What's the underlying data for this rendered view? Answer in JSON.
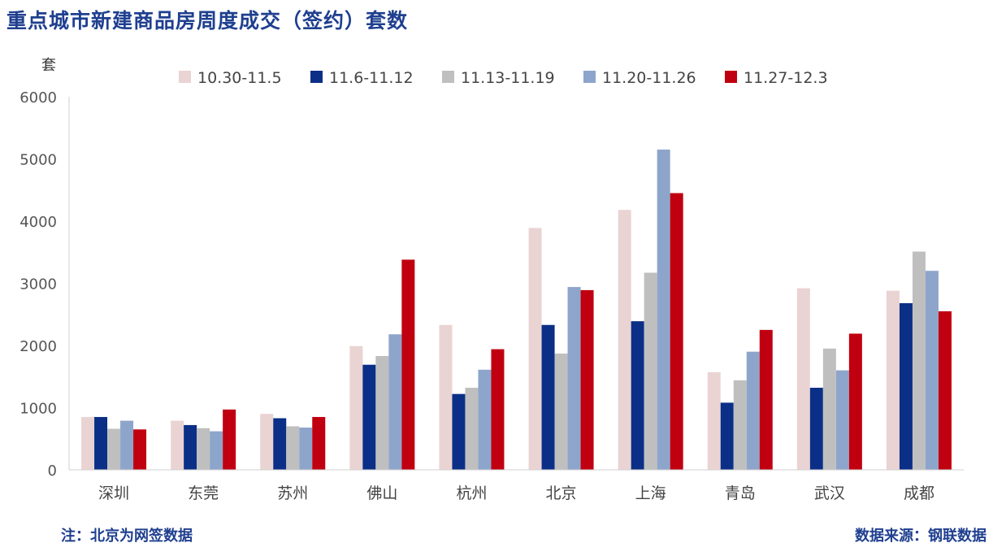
{
  "title": "重点城市新建商品房周度成交（签约）套数",
  "note": "注：北京为网签数据",
  "source": "数据来源：钢联数据",
  "colors": [
    "#ead3d3",
    "#0b2f86",
    "#bfbfbf",
    "#8ea5cb",
    "#c00010"
  ],
  "chart_data": {
    "type": "bar",
    "title": "重点城市新建商品房周度成交（签约）套数",
    "ylabel": "套",
    "ylim": [
      0,
      6000
    ],
    "yticks": [
      0,
      1000,
      2000,
      3000,
      4000,
      5000,
      6000
    ],
    "legend_position": "top",
    "grid": false,
    "categories": [
      "深圳",
      "东莞",
      "苏州",
      "佛山",
      "杭州",
      "北京",
      "上海",
      "青岛",
      "武汉",
      "成都"
    ],
    "series": [
      {
        "name": "10.30-11.5",
        "values": [
          850,
          790,
          900,
          1990,
          2330,
          3890,
          4180,
          1570,
          2920,
          2880
        ]
      },
      {
        "name": "11.6-11.12",
        "values": [
          850,
          720,
          830,
          1690,
          1220,
          2330,
          2390,
          1080,
          1320,
          2680
        ]
      },
      {
        "name": "11.13-11.19",
        "values": [
          660,
          670,
          700,
          1830,
          1320,
          1870,
          3170,
          1440,
          1950,
          3510
        ]
      },
      {
        "name": "11.20-11.26",
        "values": [
          790,
          620,
          680,
          2180,
          1610,
          2940,
          5150,
          1900,
          1600,
          3200
        ]
      },
      {
        "name": "11.27-12.3",
        "values": [
          650,
          970,
          850,
          3380,
          1940,
          2890,
          4450,
          2250,
          2190,
          2550
        ]
      }
    ]
  }
}
